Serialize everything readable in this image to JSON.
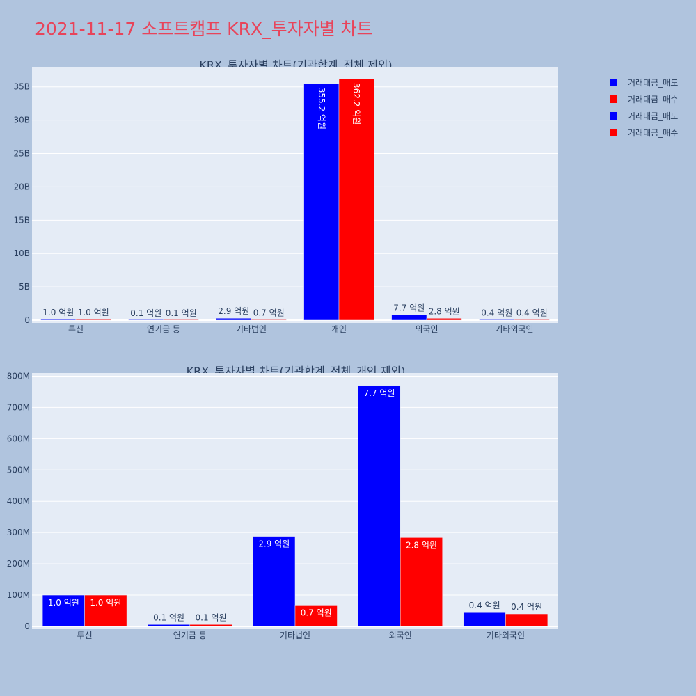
{
  "title": "2021-11-17 소프트캠프 KRX_투자자별 차트",
  "legend": [
    {
      "label": "거래대금_매도",
      "color": "#0000ff"
    },
    {
      "label": "거래대금_매수",
      "color": "#ff0000"
    },
    {
      "label": "거래대금_매도",
      "color": "#0000ff"
    },
    {
      "label": "거래대금_매수",
      "color": "#ff0000"
    }
  ],
  "chart_data": [
    {
      "type": "bar",
      "title": "KRX_투자자별 차트(기관합계_전체 제외)",
      "categories": [
        "투신",
        "연기금 등",
        "기타법인",
        "개인",
        "외국인",
        "기타외국인"
      ],
      "series": [
        {
          "name": "거래대금_매도",
          "color": "#0000ff",
          "values": [
            100000000,
            10000000,
            290000000,
            35520000000,
            770000000,
            40000000
          ],
          "labels": [
            "1.0 억원",
            "0.1 억원",
            "2.9 억원",
            "355.2 억원",
            "7.7 억원",
            "0.4 억원"
          ]
        },
        {
          "name": "거래대금_매수",
          "color": "#ff0000",
          "values": [
            100000000,
            10000000,
            70000000,
            36220000000,
            280000000,
            40000000
          ],
          "labels": [
            "1.0 억원",
            "0.1 억원",
            "0.7 억원",
            "362.2 억원",
            "2.8 억원",
            "0.4 억원"
          ]
        }
      ],
      "yticks": [
        0,
        5000000000,
        10000000000,
        15000000000,
        20000000000,
        25000000000,
        30000000000,
        35000000000
      ],
      "ytick_labels": [
        "0",
        "5B",
        "10B",
        "15B",
        "20B",
        "25B",
        "30B",
        "35B"
      ],
      "ylim": [
        0,
        38000000000
      ],
      "grid": true
    },
    {
      "type": "bar",
      "title": "KRX_투자자별 차트(기관합계_전체_개인 제외)",
      "categories": [
        "투신",
        "연기금 등",
        "기타법인",
        "외국인",
        "기타외국인"
      ],
      "series": [
        {
          "name": "거래대금_매도",
          "color": "#0000ff",
          "values": [
            100000000,
            6000000,
            288000000,
            770000000,
            44000000
          ],
          "labels": [
            "1.0 억원",
            "0.1 억원",
            "2.9 억원",
            "7.7 억원",
            "0.4 억원"
          ]
        },
        {
          "name": "거래대금_매수",
          "color": "#ff0000",
          "values": [
            100000000,
            6000000,
            68000000,
            284000000,
            40000000
          ],
          "labels": [
            "1.0 억원",
            "0.1 억원",
            "0.7 억원",
            "2.8 억원",
            "0.4 억원"
          ]
        }
      ],
      "yticks": [
        0,
        100000000,
        200000000,
        300000000,
        400000000,
        500000000,
        600000000,
        700000000,
        800000000
      ],
      "ytick_labels": [
        "0",
        "100M",
        "200M",
        "300M",
        "400M",
        "500M",
        "600M",
        "700M",
        "800M"
      ],
      "ylim": [
        0,
        810000000
      ],
      "grid": true
    }
  ]
}
